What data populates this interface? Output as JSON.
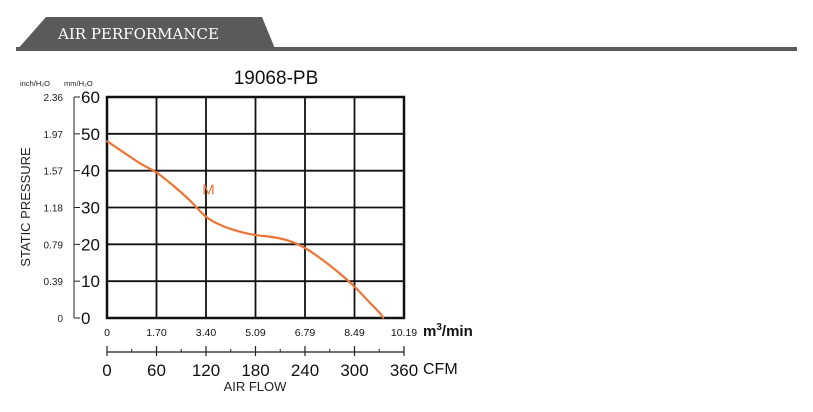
{
  "header": {
    "title": "AIR PERFORMANCE"
  },
  "chart_data": {
    "type": "line",
    "title": "19068-PB",
    "ylabel": "STATIC PRESSURE",
    "xlabel": "AIR FLOW",
    "y_unit_left": "inch/H₂O",
    "y_unit_right": "mm/H₂O",
    "x_unit_top_base": "m",
    "x_unit_top_exp": "3",
    "x_unit_top_suffix": "/min",
    "x_unit_bottom": "CFM",
    "xlim": [
      0,
      360
    ],
    "ylim": [
      0,
      60
    ],
    "y_ticks": [
      0,
      10,
      20,
      30,
      40,
      50,
      60
    ],
    "y_tick_labels": [
      "0",
      "10",
      "20",
      "30",
      "40",
      "50",
      "60"
    ],
    "y_inch_labels": [
      "0",
      "0.39",
      "0.79",
      "1.18",
      "1.57",
      "1.97",
      "2.36"
    ],
    "x_ticks_cfm": [
      0,
      60,
      120,
      180,
      240,
      300,
      360
    ],
    "x_tick_labels_cfm": [
      "0",
      "60",
      "120",
      "180",
      "240",
      "300",
      "360"
    ],
    "x_tick_labels_m3": [
      "0",
      "1.70",
      "3.40",
      "5.09",
      "6.79",
      "8.49",
      "10.19"
    ],
    "grid": true,
    "colors": {
      "line": "#ec7535",
      "frame": "#111111",
      "header_bg": "#5a5a5a",
      "header_text": "#ffffff"
    },
    "series": [
      {
        "name": "M",
        "x": [
          0,
          20,
          40,
          60,
          80,
          100,
          120,
          140,
          160,
          180,
          200,
          220,
          240,
          260,
          280,
          300,
          315,
          330,
          335
        ],
        "y": [
          48,
          45,
          42,
          39.5,
          36,
          32,
          27.5,
          25,
          23.5,
          22.5,
          22,
          21,
          19,
          16,
          12.5,
          8.5,
          5,
          1.5,
          0
        ]
      }
    ]
  }
}
